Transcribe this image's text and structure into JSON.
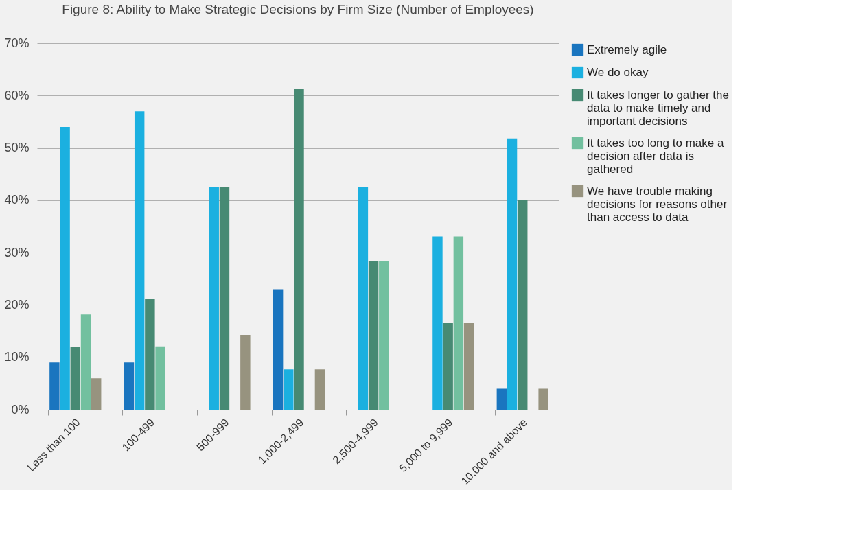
{
  "chart_data": {
    "type": "bar",
    "title": "Figure 8: Ability to Make Strategic Decisions by Firm Size (Number of Employees)",
    "categories": [
      "Less than 100",
      "100-499",
      "500-999",
      "1,000-2,499",
      "2,500-4,999",
      "5,000 to 9,999",
      "10,000 and above"
    ],
    "series": [
      {
        "name": "Extremely agile",
        "color": "#1a75bf",
        "values": [
          9,
          9,
          0,
          23,
          0,
          0,
          4
        ]
      },
      {
        "name": "We do okay",
        "color": "#1bb0e0",
        "values": [
          54,
          57,
          42.5,
          7.7,
          42.5,
          33.1,
          51.8
        ]
      },
      {
        "name": "It takes longer to gather the data to make timely and important decisions",
        "color": "#478a73",
        "values": [
          12,
          21.2,
          42.5,
          61.3,
          28.3,
          16.6,
          40
        ]
      },
      {
        "name": "It takes too long to make a decision after data is gathered",
        "color": "#72c09f",
        "values": [
          18.2,
          12.1,
          0,
          0,
          28.3,
          33.1,
          0
        ]
      },
      {
        "name": "We have trouble making decisions for reasons other than access to data",
        "color": "#97937f",
        "values": [
          6,
          0,
          14.3,
          7.7,
          0,
          16.6,
          4
        ]
      }
    ],
    "ylim": [
      0,
      70
    ],
    "yticks": [
      {
        "value": 0,
        "label": "0%"
      },
      {
        "value": 10,
        "label": "10%"
      },
      {
        "value": 20,
        "label": "20%"
      },
      {
        "value": 30,
        "label": "30%"
      },
      {
        "value": 40,
        "label": "40%"
      },
      {
        "value": 50,
        "label": "50%"
      },
      {
        "value": 60,
        "label": "60%"
      },
      {
        "value": 70,
        "label": "70%"
      }
    ],
    "grid": "y",
    "legend": "right"
  }
}
